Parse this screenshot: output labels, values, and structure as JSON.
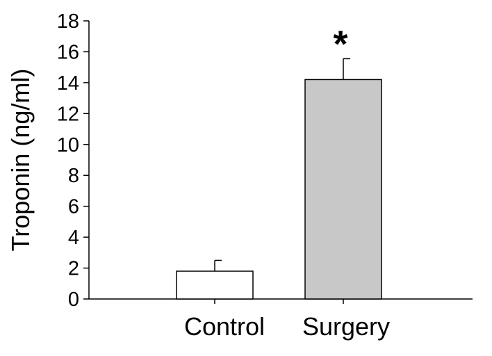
{
  "chart_data": {
    "type": "bar",
    "title": "",
    "xlabel": "",
    "ylabel": "Troponin (ng/ml)",
    "ylim": [
      0,
      18
    ],
    "yticks": [
      0,
      2,
      4,
      6,
      8,
      10,
      12,
      14,
      16,
      18
    ],
    "categories": [
      "Control",
      "Surgery"
    ],
    "values": [
      1.8,
      14.2
    ],
    "errors": [
      0.7,
      1.35
    ],
    "bar_colors": [
      "#ffffff",
      "#c8c8c8"
    ],
    "annotations": [
      {
        "category": "Surgery",
        "text": "*"
      }
    ],
    "grid": false,
    "legend": "none"
  }
}
